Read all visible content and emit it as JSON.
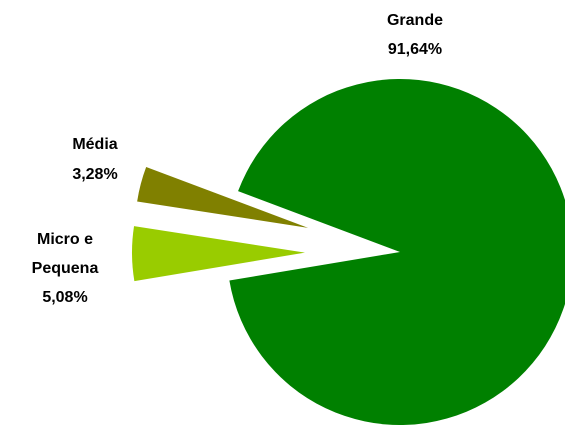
{
  "chart_data": {
    "type": "pie",
    "categories": [
      "Grande",
      "Micro e Pequena",
      "Média"
    ],
    "values": [
      91.64,
      5.08,
      3.28
    ],
    "value_labels": [
      "91,64%",
      "5,08%",
      "3,28%"
    ],
    "colors": [
      "#008000",
      "#99cc00",
      "#808000"
    ]
  }
}
